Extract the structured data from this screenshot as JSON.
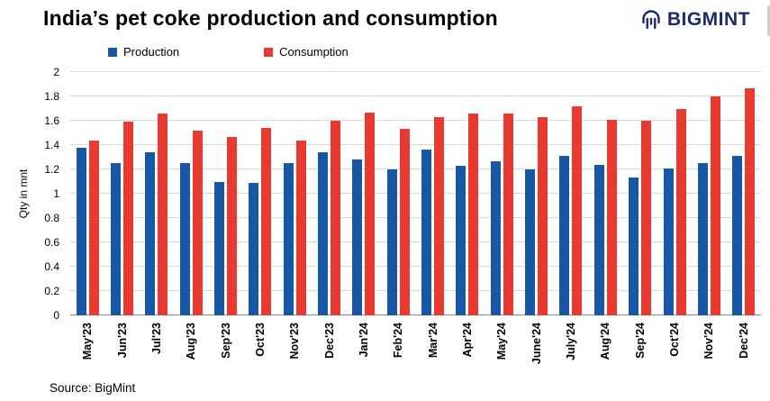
{
  "header": {
    "title": "India’s pet coke production and consumption",
    "brand": "BIGMINT"
  },
  "source": "Source: BigMint",
  "chart_data": {
    "type": "bar",
    "title": "India’s pet coke production and consumption",
    "categories": [
      "May'23",
      "Jun'23",
      "Jul'23",
      "Aug'23",
      "Sep'23",
      "Oct'23",
      "Nov'23",
      "Dec'23",
      "Jan'24",
      "Feb'24",
      "Mar'24",
      "Apr'24",
      "May'24",
      "June'24",
      "July'24",
      "Aug'24",
      "Sep'24",
      "Oct'24",
      "Nov'24",
      "Dec'24"
    ],
    "series": [
      {
        "name": "Production",
        "color": "#1757a6",
        "values": [
          1.38,
          1.25,
          1.34,
          1.25,
          1.1,
          1.09,
          1.25,
          1.34,
          1.28,
          1.2,
          1.36,
          1.23,
          1.27,
          1.2,
          1.31,
          1.24,
          1.13,
          1.21,
          1.25,
          1.31
        ]
      },
      {
        "name": "Consumption",
        "color": "#e83a31",
        "values": [
          1.44,
          1.59,
          1.66,
          1.52,
          1.47,
          1.54,
          1.44,
          1.6,
          1.67,
          1.53,
          1.63,
          1.66,
          1.66,
          1.63,
          1.72,
          1.61,
          1.6,
          1.7,
          1.8,
          1.87
        ]
      }
    ],
    "xlabel": "",
    "ylabel": "Qty in mnt",
    "ylim": [
      0,
      2
    ],
    "ytick_step": 0.2,
    "grid": true,
    "legend_position": "top"
  }
}
